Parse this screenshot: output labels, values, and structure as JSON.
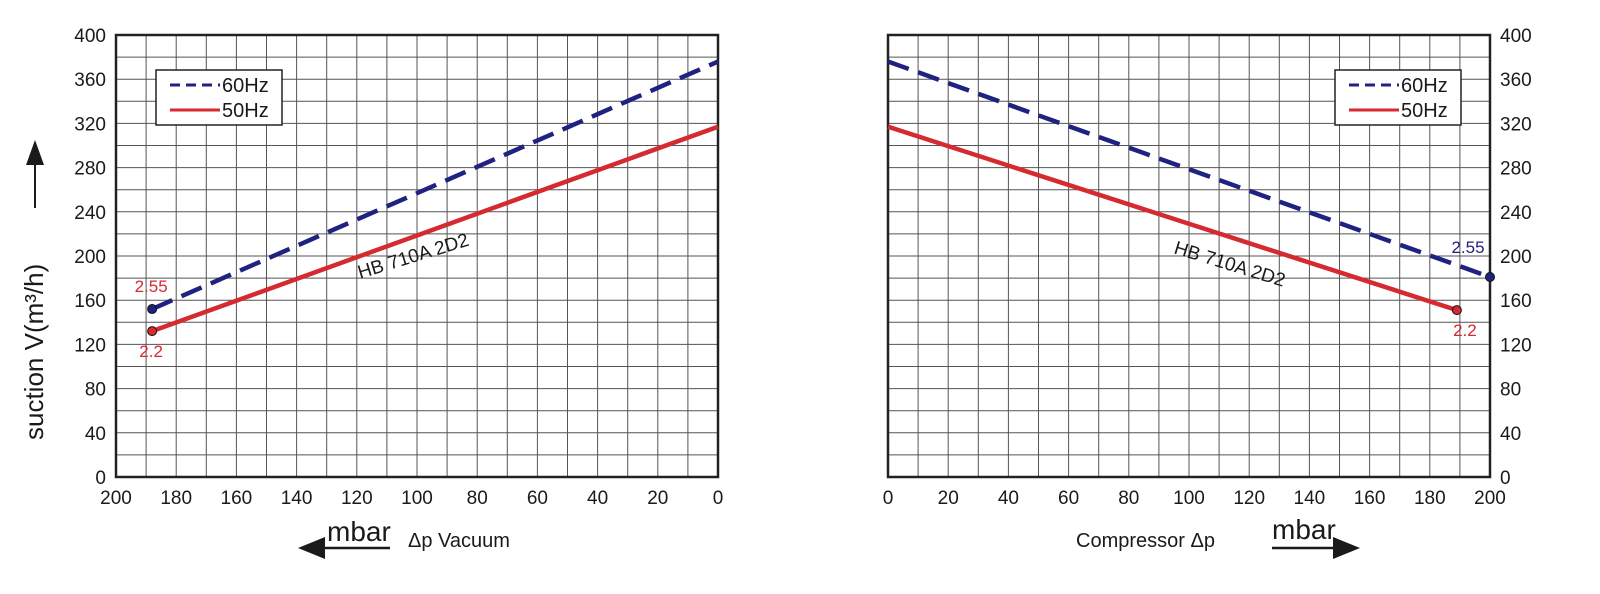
{
  "colors": {
    "series_60hz": "#1f2280",
    "series_50hz": "#d42a30",
    "grid": "#555555",
    "axis": "#222222"
  },
  "y_axis_label": "suction V(m³/h)",
  "chart_data": [
    {
      "type": "line",
      "title": "",
      "xlabel": "Δp Vacuum",
      "x_unit": "mbar",
      "ylabel": "suction V(m³/h)",
      "xlim": [
        200,
        0
      ],
      "ylim": [
        0,
        400
      ],
      "x_ticks": [
        "200",
        "180",
        "160",
        "140",
        "120",
        "100",
        "80",
        "60",
        "40",
        "20",
        "0"
      ],
      "y_ticks": [
        "0",
        "40",
        "80",
        "120",
        "160",
        "200",
        "240",
        "280",
        "320",
        "360",
        "400"
      ],
      "grid": true,
      "legend": "top-left",
      "model_label": "HB 710A 2D2",
      "series": [
        {
          "name": "60Hz",
          "style": "dashed",
          "color": "#1f2280",
          "x": [
            188,
            0
          ],
          "y": [
            152,
            376
          ],
          "end_label": "2.55"
        },
        {
          "name": "50Hz",
          "style": "solid",
          "color": "#d42a30",
          "x": [
            188,
            0
          ],
          "y": [
            132,
            317
          ],
          "end_label": "2.2"
        }
      ]
    },
    {
      "type": "line",
      "title": "",
      "xlabel": "Compressor Δp",
      "x_unit": "mbar",
      "ylabel": "",
      "xlim": [
        0,
        200
      ],
      "ylim": [
        0,
        400
      ],
      "x_ticks": [
        "0",
        "20",
        "40",
        "60",
        "80",
        "100",
        "120",
        "140",
        "160",
        "180",
        "200"
      ],
      "y_ticks": [
        "0",
        "40",
        "80",
        "120",
        "160",
        "200",
        "240",
        "280",
        "320",
        "360",
        "400"
      ],
      "grid": true,
      "legend": "top-right",
      "model_label": "HB 710A 2D2",
      "series": [
        {
          "name": "60Hz",
          "style": "dashed",
          "color": "#1f2280",
          "x": [
            0,
            200
          ],
          "y": [
            376,
            181
          ],
          "end_label": "2.55"
        },
        {
          "name": "50Hz",
          "style": "solid",
          "color": "#d42a30",
          "x": [
            0,
            189
          ],
          "y": [
            317,
            151
          ],
          "end_label": "2.2"
        }
      ]
    }
  ]
}
